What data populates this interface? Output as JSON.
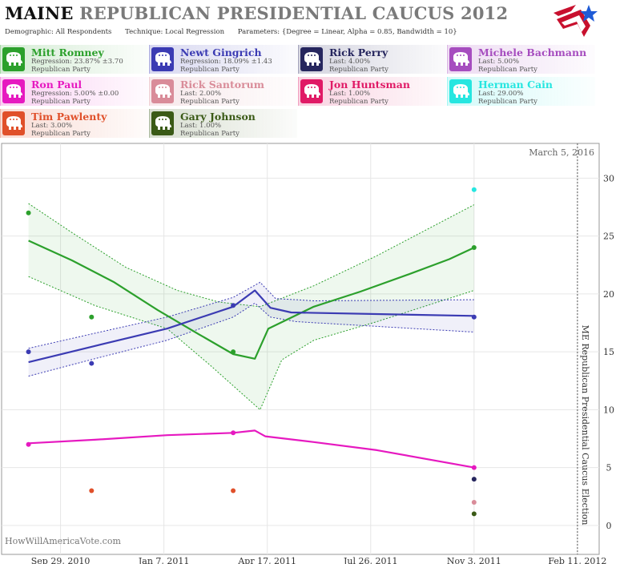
{
  "header": {
    "title_state": "MAINE",
    "title_rest": "REPUBLICAN PRESIDENTIAL CAUCUS 2012",
    "demographic": "Demographic: All Respondents",
    "technique": "Technique: Local Regression",
    "parameters": "Parameters: {Degree = Linear, Alpha = 0.85, Bandwidth = 10}"
  },
  "candidates": [
    {
      "name": "Mitt Romney",
      "stat": "Regression: 23.87% ±3.70",
      "party": "Republican Party",
      "color": "#2ca02c"
    },
    {
      "name": "Newt Gingrich",
      "stat": "Regression: 18.09% ±1.43",
      "party": "Republican Party",
      "color": "#3b3bb3"
    },
    {
      "name": "Rick Perry",
      "stat": "Last: 4.00%",
      "party": "Republican Party",
      "color": "#26265e"
    },
    {
      "name": "Michele Bachmann",
      "stat": "Last: 5.00%",
      "party": "Republican Party",
      "color": "#a64dbf"
    },
    {
      "name": "Ron Paul",
      "stat": "Regression: 5.00% ±0.00",
      "party": "Republican Party",
      "color": "#e619c0"
    },
    {
      "name": "Rick Santorum",
      "stat": "Last: 2.00%",
      "party": "Republican Party",
      "color": "#d98c99"
    },
    {
      "name": "Jon Huntsman",
      "stat": "Last: 1.00%",
      "party": "Republican Party",
      "color": "#e01a66"
    },
    {
      "name": "Herman Cain",
      "stat": "Last: 29.00%",
      "party": "Republican Party",
      "color": "#26e6e0"
    },
    {
      "name": "Tim Pawlenty",
      "stat": "Last: 3.00%",
      "party": "Republican Party",
      "color": "#e0502a"
    },
    {
      "name": "Gary Johnson",
      "stat": "Last: 1.00%",
      "party": "Republican Party",
      "color": "#3a5a16"
    }
  ],
  "chart_data": {
    "type": "line",
    "date_label": "March 5, 2016",
    "election_label": "ME Republican Presidential Caucus Election",
    "election_date": "2012-02-11",
    "watermark": "HowWillAmericaVote.com",
    "x_ticks": [
      "Sep 29, 2010",
      "Jan 7, 2011",
      "Apr 17, 2011",
      "Jul 26, 2011",
      "Nov 3, 2011",
      "Feb 11, 2012"
    ],
    "x_tick_dates": [
      "2010-09-29",
      "2011-01-07",
      "2011-04-17",
      "2011-07-26",
      "2011-11-03",
      "2012-02-11"
    ],
    "x_range": [
      "2010-08-03",
      "2012-03-03"
    ],
    "y_ticks": [
      0,
      5,
      10,
      15,
      20,
      25,
      30
    ],
    "y_range": [
      -2.5,
      33
    ],
    "grid": true,
    "series": [
      {
        "name": "Mitt Romney",
        "color": "#2ca02c",
        "points": [
          [
            "2010-08-29",
            27
          ],
          [
            "2010-10-29",
            18
          ],
          [
            "2011-03-15",
            15
          ],
          [
            "2011-11-03",
            24
          ]
        ],
        "trend": [
          [
            "2010-08-29",
            24.6
          ],
          [
            "2010-10-10",
            22.9
          ],
          [
            "2010-11-20",
            21.0
          ],
          [
            "2011-01-01",
            18.6
          ],
          [
            "2011-02-10",
            16.5
          ],
          [
            "2011-03-15",
            14.8
          ],
          [
            "2011-04-05",
            14.4
          ],
          [
            "2011-04-18",
            17.0
          ],
          [
            "2011-06-01",
            18.9
          ],
          [
            "2011-07-16",
            20.2
          ],
          [
            "2011-09-01",
            21.7
          ],
          [
            "2011-10-10",
            23.0
          ],
          [
            "2011-11-03",
            24.0
          ]
        ],
        "upper": [
          [
            "2010-08-29",
            27.8
          ],
          [
            "2010-10-10",
            25.3
          ],
          [
            "2010-12-01",
            22.3
          ],
          [
            "2011-01-20",
            20.3
          ],
          [
            "2011-03-01",
            19.3
          ],
          [
            "2011-04-10",
            18.9
          ],
          [
            "2011-06-01",
            20.7
          ],
          [
            "2011-08-01",
            23.3
          ],
          [
            "2011-11-03",
            27.7
          ]
        ],
        "lower": [
          [
            "2010-08-29",
            21.5
          ],
          [
            "2010-11-01",
            19.0
          ],
          [
            "2011-01-10",
            17.0
          ],
          [
            "2011-02-20",
            13.9
          ],
          [
            "2011-04-10",
            10.0
          ],
          [
            "2011-05-01",
            14.3
          ],
          [
            "2011-06-01",
            16.0
          ],
          [
            "2011-08-01",
            17.6
          ],
          [
            "2011-11-03",
            20.3
          ]
        ]
      },
      {
        "name": "Newt Gingrich",
        "color": "#3b3bb3",
        "points": [
          [
            "2010-08-29",
            15
          ],
          [
            "2010-10-29",
            14
          ],
          [
            "2011-03-15",
            19
          ],
          [
            "2011-11-03",
            18
          ]
        ],
        "trend": [
          [
            "2010-08-29",
            14.1
          ],
          [
            "2010-11-01",
            15.5
          ],
          [
            "2011-01-10",
            17.0
          ],
          [
            "2011-03-15",
            18.9
          ],
          [
            "2011-04-05",
            20.3
          ],
          [
            "2011-04-20",
            18.8
          ],
          [
            "2011-05-10",
            18.4
          ],
          [
            "2011-11-03",
            18.1
          ]
        ],
        "upper": [
          [
            "2010-08-29",
            15.3
          ],
          [
            "2010-11-01",
            16.6
          ],
          [
            "2011-01-10",
            18.0
          ],
          [
            "2011-03-15",
            19.7
          ],
          [
            "2011-04-10",
            21.0
          ],
          [
            "2011-04-25",
            19.6
          ],
          [
            "2011-06-01",
            19.4
          ],
          [
            "2011-11-03",
            19.5
          ]
        ],
        "lower": [
          [
            "2010-08-29",
            12.9
          ],
          [
            "2010-11-01",
            14.4
          ],
          [
            "2011-01-10",
            16.0
          ],
          [
            "2011-03-15",
            18.0
          ],
          [
            "2011-04-05",
            19.2
          ],
          [
            "2011-04-20",
            18.0
          ],
          [
            "2011-05-15",
            17.6
          ],
          [
            "2011-11-03",
            16.7
          ]
        ]
      },
      {
        "name": "Ron Paul",
        "color": "#e619c0",
        "points": [
          [
            "2010-08-29",
            7
          ],
          [
            "2011-03-15",
            8
          ],
          [
            "2011-11-03",
            5
          ]
        ],
        "trend": [
          [
            "2010-08-29",
            7.1
          ],
          [
            "2010-11-01",
            7.4
          ],
          [
            "2011-01-10",
            7.8
          ],
          [
            "2011-03-15",
            8.0
          ],
          [
            "2011-04-05",
            8.2
          ],
          [
            "2011-04-15",
            7.7
          ],
          [
            "2011-06-01",
            7.2
          ],
          [
            "2011-08-01",
            6.5
          ],
          [
            "2011-11-03",
            5.0
          ]
        ]
      },
      {
        "name": "Tim Pawlenty",
        "color": "#e0502a",
        "points": [
          [
            "2010-10-29",
            3
          ],
          [
            "2011-03-15",
            3
          ]
        ]
      },
      {
        "name": "Herman Cain",
        "color": "#26e6e0",
        "points": [
          [
            "2011-11-03",
            29
          ]
        ]
      },
      {
        "name": "Rick Perry",
        "color": "#26265e",
        "points": [
          [
            "2011-11-03",
            4
          ]
        ]
      },
      {
        "name": "Rick Santorum",
        "color": "#d98c99",
        "points": [
          [
            "2011-11-03",
            2
          ]
        ]
      },
      {
        "name": "Gary Johnson",
        "color": "#3a5a16",
        "points": [
          [
            "2011-11-03",
            1
          ]
        ]
      }
    ]
  }
}
